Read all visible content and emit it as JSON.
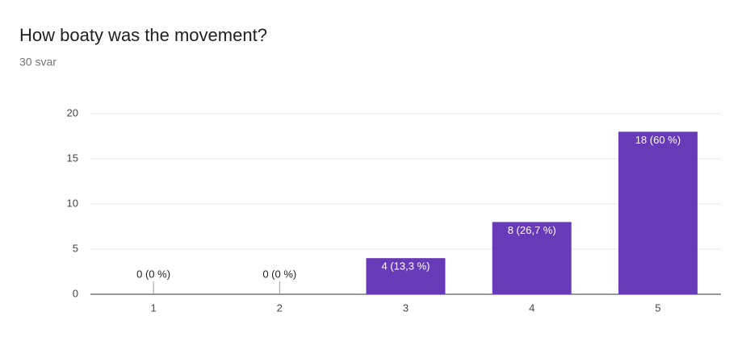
{
  "chart_data": {
    "type": "bar",
    "title": "How boaty was the movement?",
    "subtitle": "30 svar",
    "categories": [
      "1",
      "2",
      "3",
      "4",
      "5"
    ],
    "values": [
      0,
      0,
      4,
      8,
      18
    ],
    "value_labels": [
      "0 (0 %)",
      "0 (0 %)",
      "4 (13,3 %)",
      "8 (26,7 %)",
      "18 (60 %)"
    ],
    "color": "#673ab7",
    "ylim": [
      0,
      20
    ],
    "yticks": [
      0,
      5,
      10,
      15,
      20
    ],
    "grid": true
  }
}
